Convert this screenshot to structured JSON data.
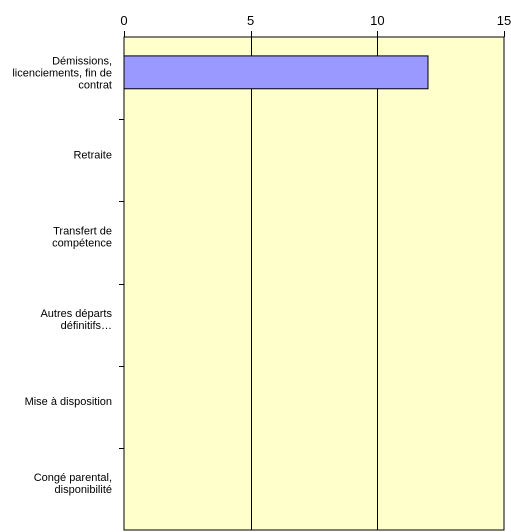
{
  "chart_data": {
    "type": "bar",
    "orientation": "horizontal",
    "title": "",
    "xlabel": "",
    "ylabel": "",
    "categories": [
      [
        "Démissions,",
        "licenciements, fin de",
        "contrat"
      ],
      [
        "Retraite"
      ],
      [
        "Transfert de",
        "compétence"
      ],
      [
        "Autres départs",
        "définitifs…"
      ],
      [
        "Mise à disposition"
      ],
      [
        "Congé parental,",
        "disponibilité"
      ]
    ],
    "series": [
      {
        "values": [
          12,
          0,
          0,
          0,
          0,
          0
        ],
        "color": "#9999ff"
      }
    ],
    "xlim": [
      0,
      15
    ],
    "x_ticks": [
      0,
      5,
      10,
      15
    ],
    "x_axis_position": "top",
    "grid": true,
    "plot_background": "#ffffcc",
    "legend": "none"
  }
}
